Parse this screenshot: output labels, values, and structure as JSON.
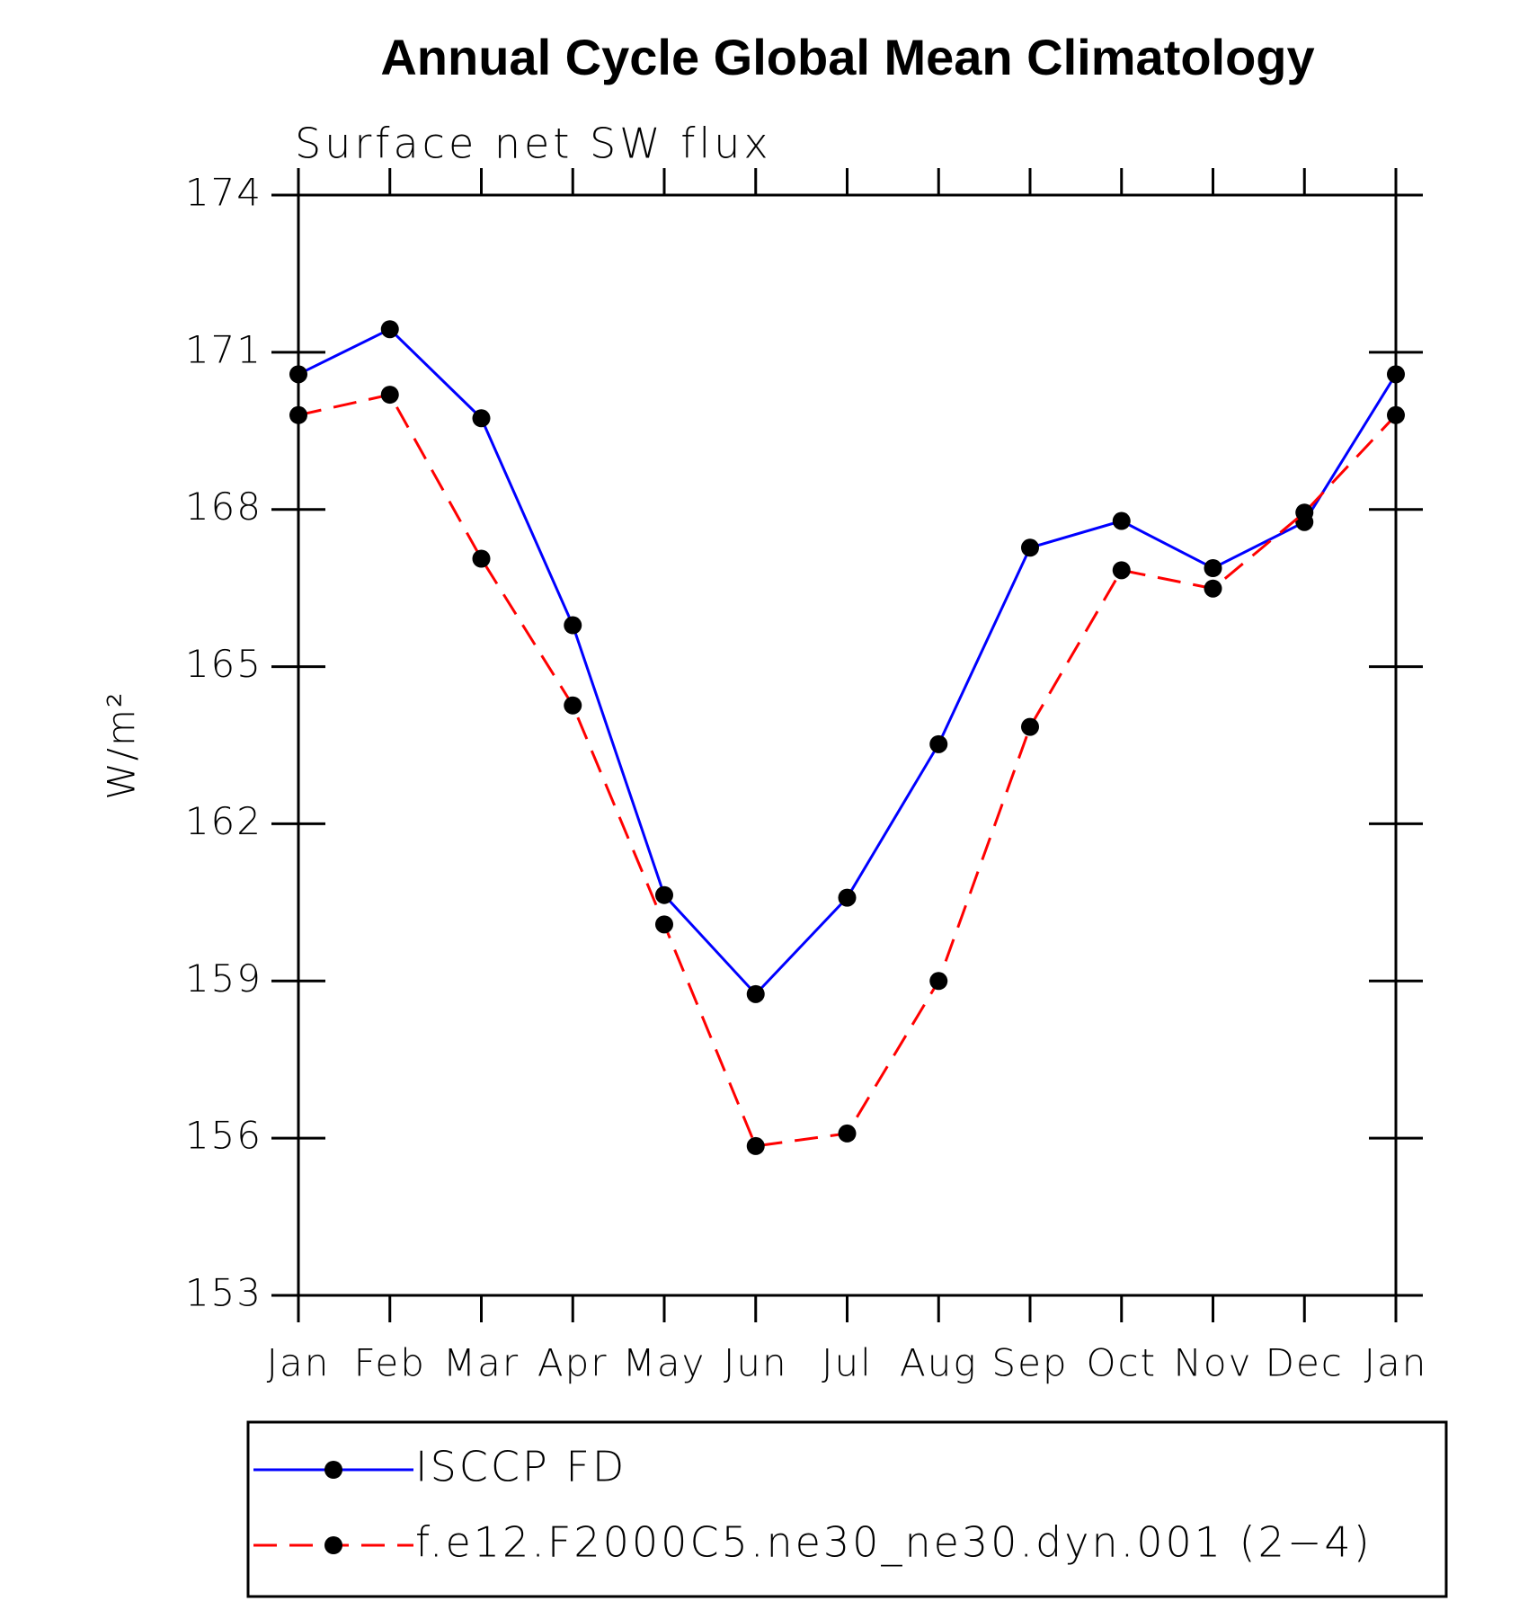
{
  "chart_data": {
    "type": "line",
    "title": "Annual Cycle Global Mean Climatology",
    "subtitle": "Surface net SW flux",
    "y_label": "W/m²",
    "categories": [
      "Jan",
      "Feb",
      "Mar",
      "Apr",
      "May",
      "Jun",
      "Jul",
      "Aug",
      "Sep",
      "Oct",
      "Nov",
      "Dec",
      "Jan"
    ],
    "ylim": [
      153,
      174
    ],
    "yticks": [
      153,
      156,
      159,
      162,
      165,
      168,
      171,
      174
    ],
    "series": [
      {
        "name": "ISCCP FD",
        "color": "#0000ff",
        "dash": "solid",
        "values": [
          170.58,
          171.44,
          169.74,
          165.79,
          160.64,
          158.75,
          160.59,
          163.52,
          167.27,
          167.78,
          166.88,
          167.76,
          170.58
        ]
      },
      {
        "name": "f.e12.F2000C5.ne30_ne30.dyn.001 (2−4)",
        "color": "#ff0000",
        "dash": "dashed",
        "values": [
          169.8,
          170.19,
          167.06,
          164.26,
          160.08,
          155.85,
          156.09,
          159.0,
          163.85,
          166.84,
          166.49,
          167.94,
          169.8
        ]
      }
    ]
  }
}
